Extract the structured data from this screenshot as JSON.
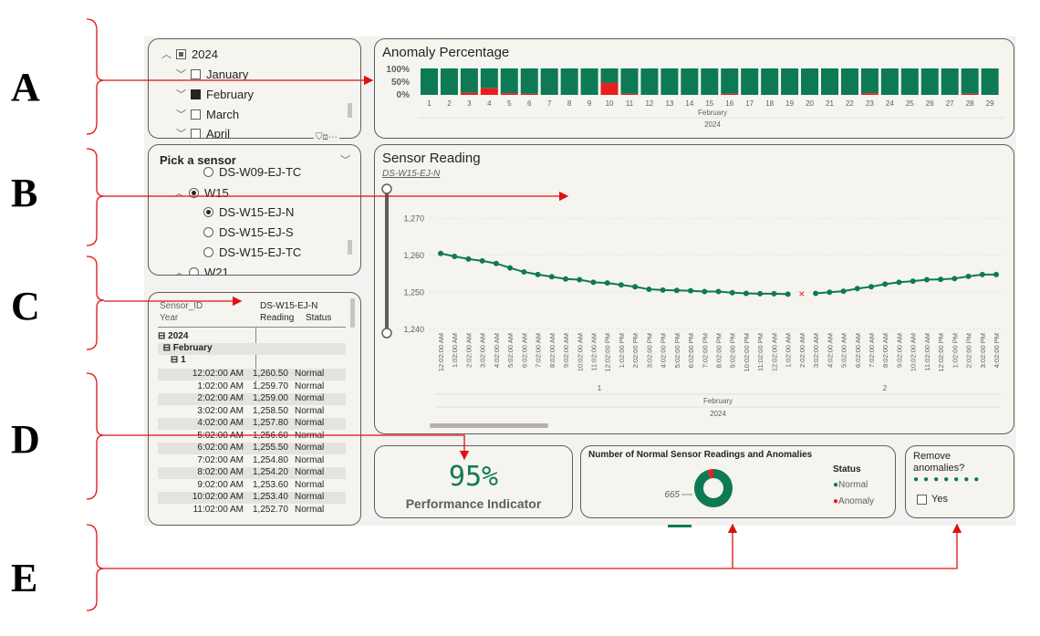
{
  "annotations": {
    "labels": [
      "A",
      "B",
      "C",
      "D",
      "E"
    ]
  },
  "date_slicer": {
    "items": [
      {
        "label": "2024",
        "chevron": "up",
        "check": "partial"
      },
      {
        "label": "January",
        "chevron": "down",
        "check": "empty"
      },
      {
        "label": "February",
        "chevron": "down",
        "check": "filled"
      },
      {
        "label": "March",
        "chevron": "down",
        "check": "empty"
      },
      {
        "label": "April",
        "chevron": "down",
        "check": "empty"
      }
    ],
    "header_icons": "filter-icon focus-icon more-icon"
  },
  "sensor_slicer": {
    "title": "Pick a sensor",
    "items": [
      {
        "label": "DS-W09-EJ-TC",
        "selected": false
      },
      {
        "label": "W15",
        "selected": true
      },
      {
        "label": "DS-W15-EJ-N",
        "selected": true
      },
      {
        "label": "DS-W15-EJ-S",
        "selected": false
      },
      {
        "label": "DS-W15-EJ-TC",
        "selected": false
      },
      {
        "label": "W21",
        "selected": false
      }
    ]
  },
  "matrix": {
    "col_header_1": "Sensor_ID",
    "col_header_1b": "Year",
    "col_header_sensor": "DS-W15-EJ-N",
    "col_reading": "Reading",
    "col_status": "Status",
    "group_year": "2024",
    "group_month": "February",
    "group_day": "1",
    "rows": [
      {
        "time": "12:02:00 AM",
        "reading": "1,260.50",
        "status": "Normal"
      },
      {
        "time": "1:02:00 AM",
        "reading": "1,259.70",
        "status": "Normal"
      },
      {
        "time": "2:02:00 AM",
        "reading": "1,259.00",
        "status": "Normal"
      },
      {
        "time": "3:02:00 AM",
        "reading": "1,258.50",
        "status": "Normal"
      },
      {
        "time": "4:02:00 AM",
        "reading": "1,257.80",
        "status": "Normal"
      },
      {
        "time": "5:02:00 AM",
        "reading": "1,256.60",
        "status": "Normal"
      },
      {
        "time": "6:02:00 AM",
        "reading": "1,255.50",
        "status": "Normal"
      },
      {
        "time": "7:02:00 AM",
        "reading": "1,254.80",
        "status": "Normal"
      },
      {
        "time": "8:02:00 AM",
        "reading": "1,254.20",
        "status": "Normal"
      },
      {
        "time": "9:02:00 AM",
        "reading": "1,253.60",
        "status": "Normal"
      },
      {
        "time": "10:02:00 AM",
        "reading": "1,253.40",
        "status": "Normal"
      },
      {
        "time": "11:02:00 AM",
        "reading": "1,252.70",
        "status": "Normal"
      }
    ]
  },
  "anomaly_chart": {
    "title": "Anomaly Percentage",
    "month_label": "February",
    "year_label": "2024",
    "y_ticks": [
      "100%",
      "50%",
      "0%"
    ]
  },
  "sensor_chart": {
    "title": "Sensor Reading",
    "subtitle": "DS-W15-EJ-N",
    "day_labels": [
      "1",
      "2"
    ],
    "month_label": "February",
    "year_label": "2024"
  },
  "kpi": {
    "value": "95%",
    "label": "Performance Indicator"
  },
  "donut": {
    "title": "Number of Normal Sensor Readings and Anomalies",
    "value_label": "665",
    "legend_title": "Status",
    "legend_normal": "Normal",
    "legend_anomaly": "Anomaly",
    "normal_fraction": 0.95
  },
  "remove_slicer": {
    "title_line1": "Remove",
    "title_line2": "anomalies?",
    "option": "Yes"
  },
  "colors": {
    "normal": "#0e7a55",
    "anomaly": "#e81e1e",
    "arrow": "#e01010",
    "panel_bg": "#f5f4ef"
  },
  "chart_data": [
    {
      "type": "bar",
      "title": "Anomaly Percentage",
      "categories": [
        "1",
        "2",
        "3",
        "4",
        "5",
        "6",
        "7",
        "8",
        "9",
        "10",
        "11",
        "12",
        "13",
        "14",
        "15",
        "16",
        "17",
        "18",
        "19",
        "20",
        "21",
        "22",
        "23",
        "24",
        "25",
        "26",
        "27",
        "28",
        "29"
      ],
      "series": [
        {
          "name": "Normal",
          "values": [
            100,
            100,
            92,
            75,
            94,
            96,
            100,
            100,
            100,
            55,
            96,
            100,
            100,
            100,
            100,
            96,
            100,
            100,
            100,
            100,
            100,
            100,
            94,
            100,
            100,
            100,
            100,
            96,
            100
          ]
        },
        {
          "name": "Anomaly",
          "values": [
            0,
            0,
            8,
            25,
            6,
            4,
            0,
            0,
            0,
            45,
            4,
            0,
            0,
            0,
            0,
            4,
            0,
            0,
            0,
            0,
            0,
            0,
            6,
            0,
            0,
            0,
            0,
            4,
            0
          ]
        }
      ],
      "ylim": [
        0,
        100
      ],
      "stacked": true
    },
    {
      "type": "line",
      "title": "Sensor Reading",
      "x": [
        "12:02:00 AM",
        "1:02:00 AM",
        "2:02:00 AM",
        "3:02:00 AM",
        "4:02:00 AM",
        "5:02:00 AM",
        "6:02:00 AM",
        "7:02:00 AM",
        "8:02:00 AM",
        "9:02:00 AM",
        "10:02:00 AM",
        "11:02:00 AM",
        "12:02:00 PM",
        "1:02:00 PM",
        "2:02:00 PM",
        "3:02:00 PM",
        "4:02:00 PM",
        "5:02:00 PM",
        "6:02:00 PM",
        "7:02:00 PM",
        "8:02:00 PM",
        "9:02:00 PM",
        "10:02:00 PM",
        "11:02:00 PM",
        "12:02:00 AM",
        "1:02:00 AM",
        "2:02:00 AM",
        "3:02:00 AM",
        "4:02:00 AM",
        "5:02:00 AM",
        "6:02:00 AM",
        "7:02:00 AM",
        "8:02:00 AM",
        "9:02:00 AM",
        "10:02:00 AM",
        "11:02:00 AM",
        "12:02:00 PM",
        "1:02:00 PM",
        "2:02:00 PM",
        "3:02:00 PM",
        "4:02:00 PM"
      ],
      "y": [
        1260.5,
        1259.7,
        1259.0,
        1258.5,
        1257.8,
        1256.6,
        1255.5,
        1254.8,
        1254.2,
        1253.6,
        1253.4,
        1252.7,
        1252.5,
        1252.0,
        1251.5,
        1250.8,
        1250.6,
        1250.5,
        1250.4,
        1250.2,
        1250.2,
        1249.9,
        1249.7,
        1249.6,
        1249.6,
        1249.5,
        null,
        1249.7,
        1250.0,
        1250.3,
        1251.0,
        1251.5,
        1252.2,
        1252.7,
        1253.0,
        1253.4,
        1253.5,
        1253.7,
        1254.3,
        1254.8,
        1254.8
      ],
      "anomaly_index": 26,
      "ylim": [
        1236,
        1276
      ],
      "y_ticks": [
        1240,
        1250,
        1260,
        1270
      ],
      "y_tick_labels": [
        "1,240",
        "1,250",
        "1,260",
        "1,270"
      ]
    },
    {
      "type": "pie",
      "title": "Number of Normal Sensor Readings and Anomalies",
      "categories": [
        "Normal",
        "Anomaly"
      ],
      "values": [
        665,
        35
      ]
    }
  ]
}
